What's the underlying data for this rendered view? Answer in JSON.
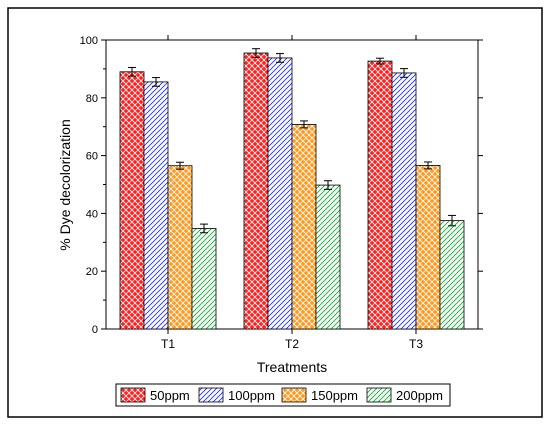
{
  "chart_data": {
    "type": "bar",
    "title": "",
    "xlabel": "Treatments",
    "ylabel": "% Dye decolorization",
    "ylim": [
      0,
      100
    ],
    "yticks": [
      0,
      20,
      40,
      60,
      80,
      100
    ],
    "categories": [
      "T1",
      "T2",
      "T3"
    ],
    "legend_position": "bottom",
    "grid": false,
    "series": [
      {
        "name": "50ppm",
        "color": "#ff0000",
        "pattern": "crosshatch-red",
        "values": [
          89,
          95.5,
          92.7
        ],
        "errors": [
          1.5,
          1.5,
          1.0
        ]
      },
      {
        "name": "100ppm",
        "color": "#3344ff",
        "pattern": "diagonal-blue",
        "values": [
          85.5,
          93.8,
          88.6
        ],
        "errors": [
          1.5,
          1.5,
          1.5
        ]
      },
      {
        "name": "150ppm",
        "color": "#ff8c00",
        "pattern": "crosshatch-orange",
        "values": [
          56.5,
          70.8,
          56.6
        ],
        "errors": [
          1.2,
          1.2,
          1.2
        ]
      },
      {
        "name": "200ppm",
        "color": "#22cc44",
        "pattern": "diagonal-green",
        "values": [
          34.8,
          49.8,
          37.5
        ],
        "errors": [
          1.5,
          1.5,
          1.8
        ]
      }
    ]
  }
}
